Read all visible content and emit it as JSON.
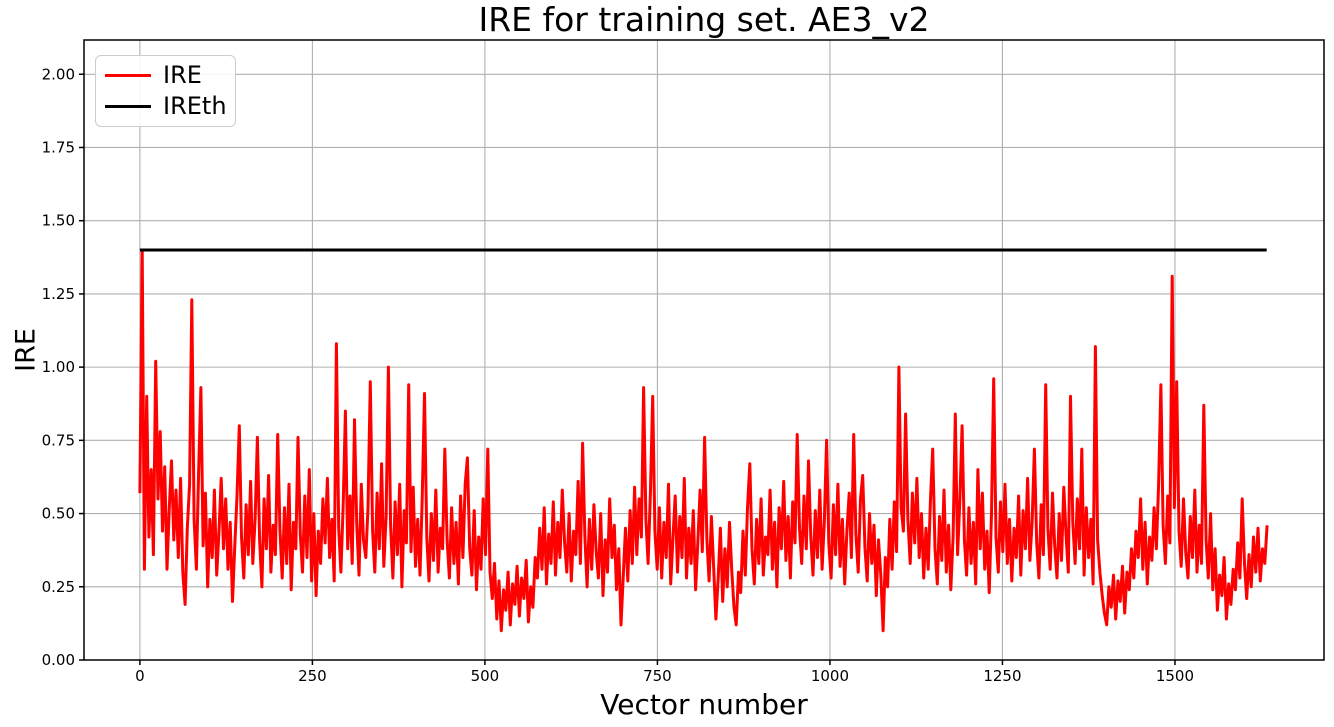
{
  "chart_data": {
    "type": "line",
    "title": "IRE for training set. AE3_v2",
    "xlabel": "Vector number",
    "ylabel": "IRE",
    "xlim": [
      -81,
      1716
    ],
    "ylim": [
      0,
      2.117
    ],
    "grid": true,
    "grid_color": "#b0b0b0",
    "axis_color": "#000000",
    "background_color": "#ffffff",
    "x_ticks": [
      {
        "v": 0,
        "label": "0"
      },
      {
        "v": 250,
        "label": "250"
      },
      {
        "v": 500,
        "label": "500"
      },
      {
        "v": 750,
        "label": "750"
      },
      {
        "v": 1000,
        "label": "1000"
      },
      {
        "v": 1250,
        "label": "1250"
      },
      {
        "v": 1500,
        "label": "1500"
      }
    ],
    "y_ticks": [
      {
        "v": 0.0,
        "label": "0.00"
      },
      {
        "v": 0.25,
        "label": "0.25"
      },
      {
        "v": 0.5,
        "label": "0.50"
      },
      {
        "v": 0.75,
        "label": "0.75"
      },
      {
        "v": 1.0,
        "label": "1.00"
      },
      {
        "v": 1.25,
        "label": "1.25"
      },
      {
        "v": 1.5,
        "label": "1.50"
      },
      {
        "v": 1.75,
        "label": "1.75"
      },
      {
        "v": 2.0,
        "label": "2.00"
      }
    ],
    "legend": {
      "position": "upper-left",
      "items": [
        {
          "label": "IRE",
          "color": "#ff0000"
        },
        {
          "label": "IREth",
          "color": "#000000"
        }
      ]
    },
    "series": [
      {
        "name": "IRE",
        "color": "#ff0000",
        "line_width": 3,
        "x_start": 0,
        "x_step": 3.2735,
        "values": [
          0.57,
          1.4,
          0.31,
          0.9,
          0.42,
          0.65,
          0.36,
          1.02,
          0.55,
          0.78,
          0.44,
          0.66,
          0.31,
          0.52,
          0.68,
          0.41,
          0.58,
          0.35,
          0.62,
          0.3,
          0.19,
          0.45,
          0.6,
          1.23,
          0.48,
          0.31,
          0.64,
          0.93,
          0.39,
          0.57,
          0.25,
          0.48,
          0.35,
          0.58,
          0.29,
          0.44,
          0.62,
          0.38,
          0.55,
          0.31,
          0.47,
          0.2,
          0.39,
          0.56,
          0.8,
          0.42,
          0.28,
          0.53,
          0.36,
          0.61,
          0.33,
          0.48,
          0.76,
          0.41,
          0.25,
          0.55,
          0.38,
          0.63,
          0.3,
          0.46,
          0.36,
          0.77,
          0.45,
          0.28,
          0.52,
          0.33,
          0.6,
          0.24,
          0.47,
          0.38,
          0.76,
          0.43,
          0.3,
          0.56,
          0.35,
          0.65,
          0.27,
          0.5,
          0.22,
          0.44,
          0.33,
          0.55,
          0.4,
          0.62,
          0.35,
          0.48,
          0.27,
          1.08,
          0.45,
          0.3,
          0.53,
          0.85,
          0.38,
          0.56,
          0.33,
          0.82,
          0.47,
          0.29,
          0.6,
          0.41,
          0.35,
          0.52,
          0.95,
          0.44,
          0.3,
          0.57,
          0.38,
          0.67,
          0.32,
          0.49,
          1.0,
          0.46,
          0.28,
          0.54,
          0.36,
          0.6,
          0.25,
          0.51,
          0.4,
          0.94,
          0.37,
          0.59,
          0.32,
          0.48,
          0.29,
          0.55,
          0.91,
          0.42,
          0.27,
          0.5,
          0.34,
          0.58,
          0.3,
          0.45,
          0.38,
          0.72,
          0.41,
          0.28,
          0.52,
          0.33,
          0.47,
          0.26,
          0.56,
          0.35,
          0.6,
          0.69,
          0.38,
          0.29,
          0.51,
          0.24,
          0.42,
          0.31,
          0.55,
          0.36,
          0.72,
          0.3,
          0.21,
          0.33,
          0.14,
          0.27,
          0.1,
          0.24,
          0.17,
          0.3,
          0.12,
          0.26,
          0.19,
          0.32,
          0.15,
          0.28,
          0.21,
          0.34,
          0.13,
          0.25,
          0.18,
          0.35,
          0.28,
          0.45,
          0.31,
          0.52,
          0.26,
          0.43,
          0.33,
          0.54,
          0.29,
          0.47,
          0.35,
          0.58,
          0.4,
          0.3,
          0.5,
          0.27,
          0.44,
          0.36,
          0.61,
          0.33,
          0.74,
          0.42,
          0.25,
          0.48,
          0.31,
          0.53,
          0.37,
          0.28,
          0.5,
          0.22,
          0.41,
          0.3,
          0.55,
          0.35,
          0.46,
          0.24,
          0.38,
          0.12,
          0.29,
          0.45,
          0.27,
          0.51,
          0.33,
          0.59,
          0.36,
          0.55,
          0.42,
          0.93,
          0.48,
          0.33,
          0.57,
          0.9,
          0.44,
          0.31,
          0.52,
          0.28,
          0.47,
          0.35,
          0.6,
          0.26,
          0.42,
          0.56,
          0.3,
          0.49,
          0.35,
          0.62,
          0.28,
          0.45,
          0.33,
          0.51,
          0.24,
          0.4,
          0.58,
          0.37,
          0.76,
          0.41,
          0.27,
          0.49,
          0.32,
          0.14,
          0.28,
          0.45,
          0.2,
          0.38,
          0.25,
          0.47,
          0.31,
          0.18,
          0.12,
          0.3,
          0.23,
          0.44,
          0.29,
          0.52,
          0.67,
          0.38,
          0.26,
          0.48,
          0.33,
          0.55,
          0.29,
          0.42,
          0.36,
          0.58,
          0.31,
          0.47,
          0.25,
          0.52,
          0.38,
          0.61,
          0.34,
          0.49,
          0.28,
          0.54,
          0.4,
          0.77,
          0.45,
          0.33,
          0.56,
          0.38,
          0.68,
          0.42,
          0.29,
          0.51,
          0.35,
          0.58,
          0.31,
          0.47,
          0.75,
          0.4,
          0.28,
          0.53,
          0.36,
          0.6,
          0.32,
          0.48,
          0.26,
          0.44,
          0.57,
          0.35,
          0.77,
          0.43,
          0.3,
          0.55,
          0.63,
          0.38,
          0.27,
          0.5,
          0.33,
          0.46,
          0.22,
          0.41,
          0.29,
          0.1,
          0.35,
          0.25,
          0.48,
          0.31,
          0.54,
          0.37,
          1.0,
          0.52,
          0.44,
          0.84,
          0.48,
          0.33,
          0.57,
          0.4,
          0.62,
          0.35,
          0.5,
          0.28,
          0.45,
          0.31,
          0.55,
          0.72,
          0.38,
          0.26,
          0.49,
          0.34,
          0.58,
          0.3,
          0.46,
          0.24,
          0.42,
          0.84,
          0.36,
          0.55,
          0.8,
          0.41,
          0.29,
          0.52,
          0.33,
          0.47,
          0.26,
          0.65,
          0.38,
          0.57,
          0.31,
          0.44,
          0.23,
          0.5,
          0.96,
          0.42,
          0.3,
          0.54,
          0.37,
          0.6,
          0.33,
          0.48,
          0.27,
          0.45,
          0.35,
          0.56,
          0.29,
          0.51,
          0.38,
          0.62,
          0.34,
          0.47,
          0.72,
          0.4,
          0.28,
          0.53,
          0.36,
          0.94,
          0.45,
          0.31,
          0.57,
          0.39,
          0.28,
          0.5,
          0.34,
          0.59,
          0.43,
          0.3,
          0.9,
          0.47,
          0.33,
          0.55,
          0.38,
          0.72,
          0.29,
          0.52,
          0.35,
          0.48,
          0.26,
          1.07,
          0.41,
          0.3,
          0.22,
          0.16,
          0.12,
          0.25,
          0.18,
          0.29,
          0.14,
          0.27,
          0.2,
          0.32,
          0.16,
          0.3,
          0.24,
          0.38,
          0.28,
          0.44,
          0.35,
          0.55,
          0.31,
          0.47,
          0.26,
          0.42,
          0.34,
          0.52,
          0.38,
          0.6,
          0.94,
          0.46,
          0.33,
          0.56,
          0.4,
          1.31,
          0.52,
          0.95,
          0.44,
          0.32,
          0.55,
          0.37,
          0.28,
          0.49,
          0.35,
          0.58,
          0.3,
          0.46,
          0.33,
          0.87,
          0.41,
          0.28,
          0.5,
          0.24,
          0.38,
          0.17,
          0.29,
          0.22,
          0.35,
          0.14,
          0.26,
          0.19,
          0.31,
          0.24,
          0.4,
          0.28,
          0.55,
          0.33,
          0.21,
          0.36,
          0.25,
          0.42,
          0.3,
          0.45,
          0.27,
          0.38,
          0.33,
          0.46
        ]
      },
      {
        "name": "IREth",
        "color": "#000000",
        "line_width": 3,
        "x": [
          0,
          1633
        ],
        "values": [
          1.4,
          1.4
        ]
      }
    ]
  }
}
